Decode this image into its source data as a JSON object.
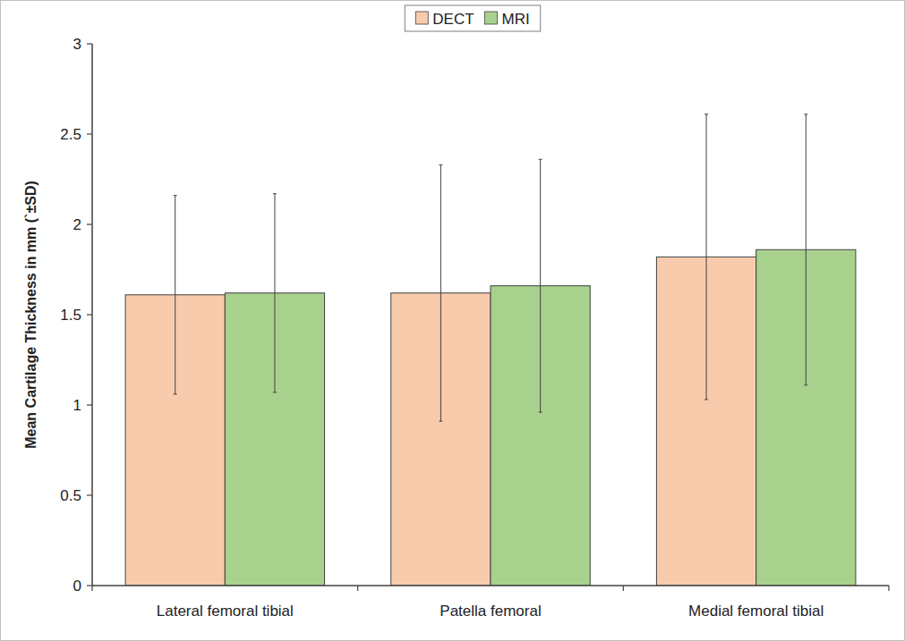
{
  "chart_data": {
    "type": "bar",
    "y_label": "Mean Cartilage Thickness in mm (`±SD)",
    "categories": [
      "Lateral femoral tibial",
      "Patella femoral",
      "Medial femoral tibial"
    ],
    "series": [
      {
        "name": "DECT",
        "color": "#f8cbad",
        "values": [
          1.61,
          1.62,
          1.82
        ],
        "errors": [
          0.55,
          0.71,
          0.79
        ]
      },
      {
        "name": "MRI",
        "color": "#a9d18e",
        "values": [
          1.62,
          1.66,
          1.86
        ],
        "errors": [
          0.55,
          0.7,
          0.75
        ]
      }
    ],
    "ylim": [
      0,
      3
    ],
    "yticks": [
      0,
      0.5,
      1,
      1.5,
      2,
      2.5,
      3
    ],
    "grid": false,
    "legend": "top"
  }
}
